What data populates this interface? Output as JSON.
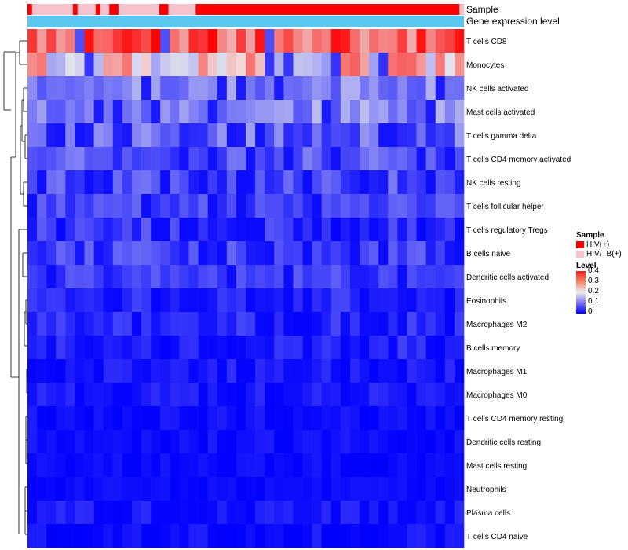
{
  "annotation": {
    "tracks": [
      {
        "id": "sample",
        "title": "Sample"
      },
      {
        "id": "gene",
        "title": "Gene expression level"
      }
    ],
    "sample_groups": [
      {
        "label": "HIV(+)",
        "color": "#ff0000"
      },
      {
        "label": "HIV/TB(+)",
        "color": "#f6c2cc"
      }
    ],
    "sample_pattern": "100000000010000100110000000001100000011111111111111111111111111111111111111111111111111111111110",
    "gene_track_color": "#5bc6ef"
  },
  "legend": {
    "sample_title": "Sample",
    "level_title": "Level",
    "level_ticks": [
      "0.4",
      "0.3",
      "0.2",
      "0.1",
      "0"
    ]
  },
  "chart_data": {
    "type": "heatmap",
    "n_samples": 46,
    "value_range": [
      0,
      0.4
    ],
    "color_scale": [
      "#0000ff",
      "#eeeeee",
      "#ff0000"
    ],
    "rows": [
      "T cells CD8",
      "Monocytes",
      "NK cells activated",
      "Mast cells activated",
      "T cells gamma delta",
      "T cells CD4 memory activated",
      "NK cells resting",
      "T cells follicular helper",
      "T cells regulatory  Tregs",
      "B cells naive",
      "Dendritic cells activated",
      "Eosinophils",
      "Macrophages M2",
      "B cells memory",
      "Macrophages M1",
      "Macrophages M0",
      "T cells CD4 memory resting",
      "Dendritic cells resting",
      "Mast cells resting",
      "Neutrophils",
      "Plasma cells",
      "T cells CD4 naive"
    ],
    "row_means": [
      0.33,
      0.22,
      0.11,
      0.11,
      0.08,
      0.07,
      0.06,
      0.06,
      0.04,
      0.05,
      0.05,
      0.03,
      0.03,
      0.03,
      0.02,
      0.02,
      0.01,
      0.01,
      0.01,
      0.01,
      0.02,
      0.01
    ],
    "row_spread": [
      0.08,
      0.1,
      0.04,
      0.05,
      0.06,
      0.04,
      0.05,
      0.03,
      0.04,
      0.04,
      0.03,
      0.03,
      0.03,
      0.03,
      0.02,
      0.02,
      0.015,
      0.015,
      0.01,
      0.008,
      0.02,
      0.02
    ]
  }
}
